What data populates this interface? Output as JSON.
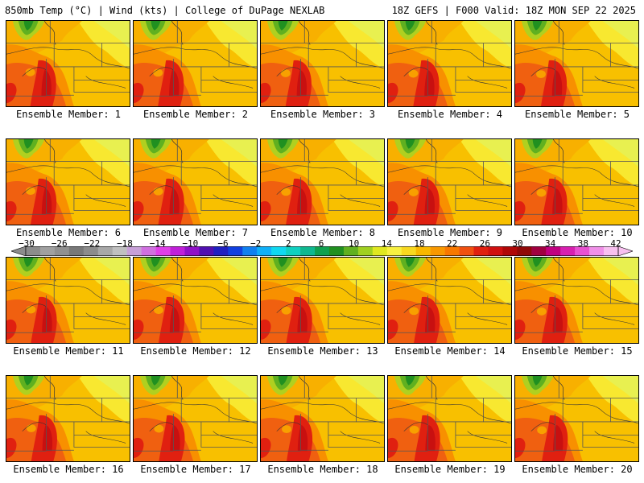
{
  "header": {
    "title_left": "850mb Temp (°C) | Wind (kts) | College of DuPage NEXLAB",
    "title_right": "18Z GEFS | F000 Valid: 18Z MON SEP 22 2025"
  },
  "panels": [
    {
      "label": "Ensemble Member: 1"
    },
    {
      "label": "Ensemble Member: 2"
    },
    {
      "label": "Ensemble Member: 3"
    },
    {
      "label": "Ensemble Member: 4"
    },
    {
      "label": "Ensemble Member: 5"
    },
    {
      "label": "Ensemble Member: 6"
    },
    {
      "label": "Ensemble Member: 7"
    },
    {
      "label": "Ensemble Member: 8"
    },
    {
      "label": "Ensemble Member: 9"
    },
    {
      "label": "Ensemble Member: 10"
    },
    {
      "label": "Ensemble Member: 11"
    },
    {
      "label": "Ensemble Member: 12"
    },
    {
      "label": "Ensemble Member: 13"
    },
    {
      "label": "Ensemble Member: 14"
    },
    {
      "label": "Ensemble Member: 15"
    },
    {
      "label": "Ensemble Member: 16"
    },
    {
      "label": "Ensemble Member: 17"
    },
    {
      "label": "Ensemble Member: 18"
    },
    {
      "label": "Ensemble Member: 19"
    },
    {
      "label": "Ensemble Member: 20"
    }
  ],
  "colorbar": {
    "ticks": [
      "−30",
      "−26",
      "−22",
      "−18",
      "−14",
      "−10",
      "−6",
      "−2",
      "2",
      "6",
      "10",
      "14",
      "18",
      "22",
      "26",
      "30",
      "34",
      "38",
      "42"
    ],
    "colors": [
      "#8c8c8c",
      "#a0a0a0",
      "#909090",
      "#787878",
      "#8c8c8c",
      "#a8a8a8",
      "#c0c0c0",
      "#c8a0d8",
      "#d070e0",
      "#e040e8",
      "#c020d8",
      "#9010c8",
      "#5010b0",
      "#2020c0",
      "#1040e0",
      "#1080f0",
      "#10b0f8",
      "#10d8f0",
      "#10d0c0",
      "#10b890",
      "#10a050",
      "#209020",
      "#60b020",
      "#a0d020",
      "#e0e820",
      "#f8f040",
      "#f8d820",
      "#f8b800",
      "#f89800",
      "#f87800",
      "#f05010",
      "#e02010",
      "#d01010",
      "#b00808",
      "#900808",
      "#a00040",
      "#c00080",
      "#d820b0",
      "#e850d0",
      "#f090e8",
      "#f8c0f0"
    ]
  }
}
